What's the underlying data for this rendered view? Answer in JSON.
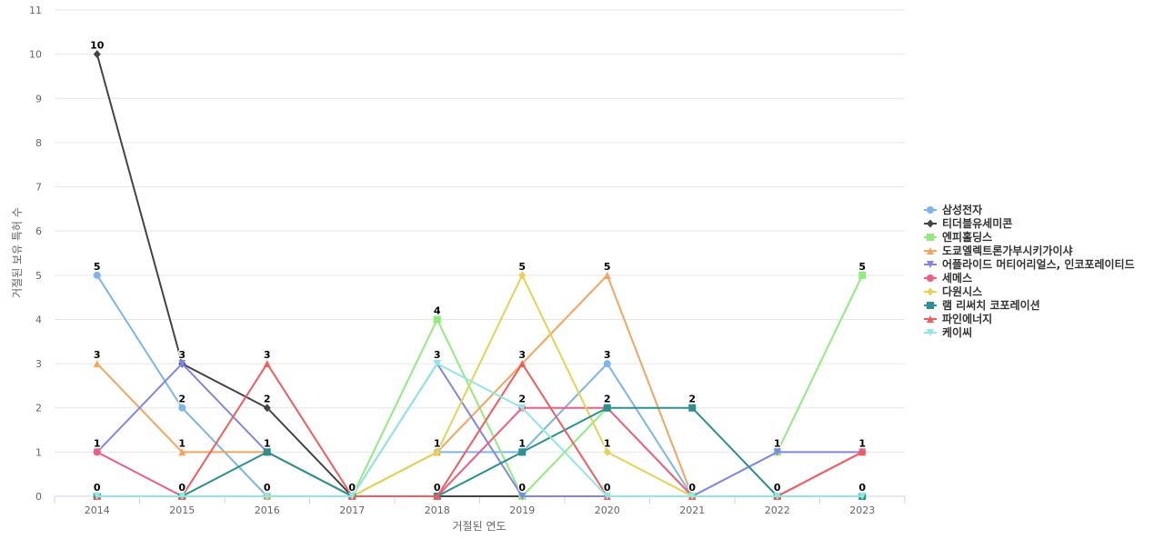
{
  "chart_data": {
    "type": "line",
    "xlabel": "거절된 연도",
    "ylabel": "거절된 보유 특허 수",
    "ylim": [
      0,
      11
    ],
    "yticks": [
      0,
      1,
      2,
      3,
      4,
      5,
      6,
      7,
      8,
      9,
      10,
      11
    ],
    "grid": true,
    "legend_position": "right",
    "categories": [
      "2014",
      "2015",
      "2016",
      "2017",
      "2018",
      "2019",
      "2020",
      "2021",
      "2022",
      "2023"
    ],
    "series": [
      {
        "name": "삼성전자",
        "color": "#7cb5ec",
        "marker": "circle",
        "values": [
          5,
          2,
          0,
          0,
          1,
          1,
          3,
          0,
          0,
          0
        ]
      },
      {
        "name": "티더블유세미콘",
        "color": "#434348",
        "marker": "diamond",
        "values": [
          10,
          3,
          2,
          0,
          0,
          0,
          0,
          0,
          0,
          0
        ]
      },
      {
        "name": "엔피홀딩스",
        "color": "#90ed7d",
        "marker": "square",
        "values": [
          0,
          0,
          0,
          0,
          4,
          0,
          2,
          0,
          1,
          5
        ]
      },
      {
        "name": "도쿄엘렉트론가부시키가이샤",
        "color": "#f7a35c",
        "marker": "triangle",
        "values": [
          3,
          1,
          1,
          0,
          1,
          3,
          5,
          0,
          0,
          0
        ]
      },
      {
        "name": "어플라이드 머티어리얼스, 인코포레이티드",
        "color": "#8085e9",
        "marker": "triangle-down",
        "values": [
          1,
          3,
          1,
          0,
          3,
          0,
          0,
          0,
          1,
          1
        ]
      },
      {
        "name": "세메스",
        "color": "#f15c80",
        "marker": "circle",
        "values": [
          1,
          0,
          0,
          0,
          0,
          2,
          2,
          0,
          0,
          1
        ]
      },
      {
        "name": "다원시스",
        "color": "#e4d354",
        "marker": "diamond",
        "values": [
          0,
          0,
          0,
          0,
          1,
          5,
          1,
          0,
          0,
          0
        ]
      },
      {
        "name": "램 리써치 코포레이션",
        "color": "#2b908f",
        "marker": "square",
        "values": [
          0,
          0,
          1,
          0,
          0,
          1,
          2,
          2,
          0,
          0
        ]
      },
      {
        "name": "파인에너지",
        "color": "#f45b5b",
        "marker": "triangle",
        "values": [
          0,
          0,
          3,
          0,
          0,
          3,
          0,
          0,
          0,
          1
        ]
      },
      {
        "name": "케이씨",
        "color": "#91e8e1",
        "marker": "triangle-down",
        "values": [
          0,
          0,
          0,
          0,
          3,
          2,
          0,
          0,
          0,
          0
        ]
      }
    ],
    "data_labels": [
      {
        "category": "2014",
        "text": "10",
        "value": 10
      },
      {
        "category": "2014",
        "text": "5",
        "value": 5
      },
      {
        "category": "2014",
        "text": "3",
        "value": 3
      },
      {
        "category": "2014",
        "text": "1",
        "value": 1
      },
      {
        "category": "2014",
        "text": "0",
        "value": 0
      },
      {
        "category": "2015",
        "text": "3",
        "value": 3
      },
      {
        "category": "2015",
        "text": "2",
        "value": 2
      },
      {
        "category": "2015",
        "text": "1",
        "value": 1
      },
      {
        "category": "2015",
        "text": "0",
        "value": 0
      },
      {
        "category": "2016",
        "text": "3",
        "value": 3
      },
      {
        "category": "2016",
        "text": "2",
        "value": 2
      },
      {
        "category": "2016",
        "text": "1",
        "value": 1
      },
      {
        "category": "2016",
        "text": "0",
        "value": 0
      },
      {
        "category": "2017",
        "text": "0",
        "value": 0
      },
      {
        "category": "2018",
        "text": "4",
        "value": 4
      },
      {
        "category": "2018",
        "text": "3",
        "value": 3
      },
      {
        "category": "2018",
        "text": "1",
        "value": 1
      },
      {
        "category": "2018",
        "text": "0",
        "value": 0
      },
      {
        "category": "2019",
        "text": "5",
        "value": 5
      },
      {
        "category": "2019",
        "text": "3",
        "value": 3
      },
      {
        "category": "2019",
        "text": "2",
        "value": 2
      },
      {
        "category": "2019",
        "text": "1",
        "value": 1
      },
      {
        "category": "2019",
        "text": "0",
        "value": 0
      },
      {
        "category": "2020",
        "text": "5",
        "value": 5
      },
      {
        "category": "2020",
        "text": "3",
        "value": 3
      },
      {
        "category": "2020",
        "text": "2",
        "value": 2
      },
      {
        "category": "2020",
        "text": "1",
        "value": 1
      },
      {
        "category": "2020",
        "text": "0",
        "value": 0
      },
      {
        "category": "2021",
        "text": "2",
        "value": 2
      },
      {
        "category": "2021",
        "text": "0",
        "value": 0
      },
      {
        "category": "2022",
        "text": "1",
        "value": 1
      },
      {
        "category": "2022",
        "text": "0",
        "value": 0
      },
      {
        "category": "2023",
        "text": "5",
        "value": 5
      },
      {
        "category": "2023",
        "text": "1",
        "value": 1
      },
      {
        "category": "2023",
        "text": "0",
        "value": 0
      }
    ]
  }
}
